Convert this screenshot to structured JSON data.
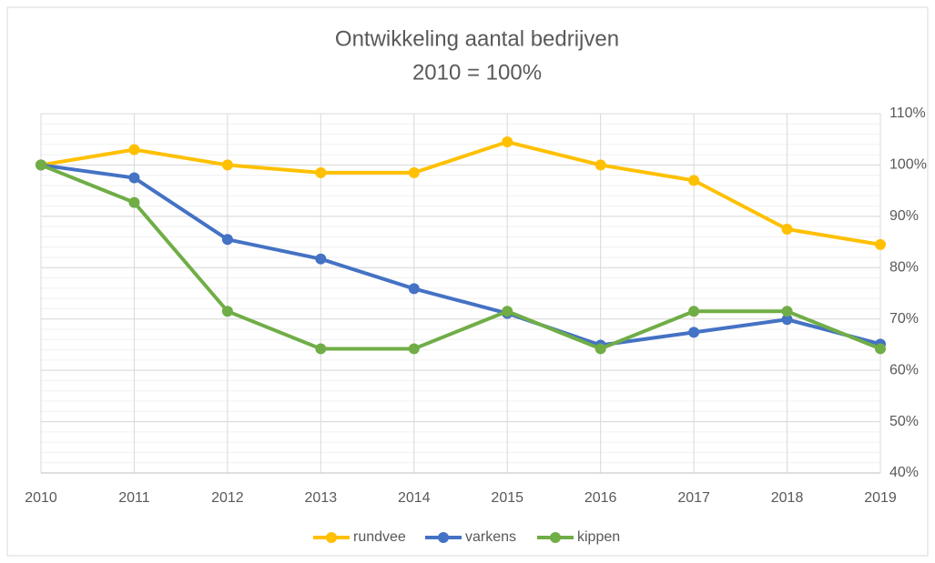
{
  "chart_data": {
    "type": "line",
    "title": "Ontwikkeling aantal bedrijven",
    "subtitle": "2010 = 100%",
    "categories": [
      "2010",
      "2011",
      "2012",
      "2013",
      "2014",
      "2015",
      "2016",
      "2017",
      "2018",
      "2019"
    ],
    "series": [
      {
        "name": "rundvee",
        "color": "#ffc000",
        "values": [
          100,
          103,
          100,
          98.5,
          98.5,
          104.5,
          100,
          97,
          87.5,
          84.5
        ]
      },
      {
        "name": "varkens",
        "color": "#4472c4",
        "values": [
          100,
          97.5,
          85.5,
          81.7,
          75.9,
          71.1,
          64.9,
          67.4,
          69.9,
          65.1
        ]
      },
      {
        "name": "kippen",
        "color": "#70ad47",
        "values": [
          100,
          92.7,
          71.5,
          64.2,
          64.2,
          71.5,
          64.2,
          71.5,
          71.5,
          64.2
        ]
      }
    ],
    "ylim": [
      40,
      110
    ],
    "yticks": [
      {
        "value": 40,
        "label": "40%"
      },
      {
        "value": 50,
        "label": "50%"
      },
      {
        "value": 60,
        "label": "60%"
      },
      {
        "value": 70,
        "label": "70%"
      },
      {
        "value": 80,
        "label": "80%"
      },
      {
        "value": 90,
        "label": "90%"
      },
      {
        "value": 100,
        "label": "100%"
      },
      {
        "value": 110,
        "label": "110%"
      }
    ],
    "y_axis_side": "right",
    "grid": true,
    "minor_grid_step": 2,
    "legend": "bottom"
  }
}
